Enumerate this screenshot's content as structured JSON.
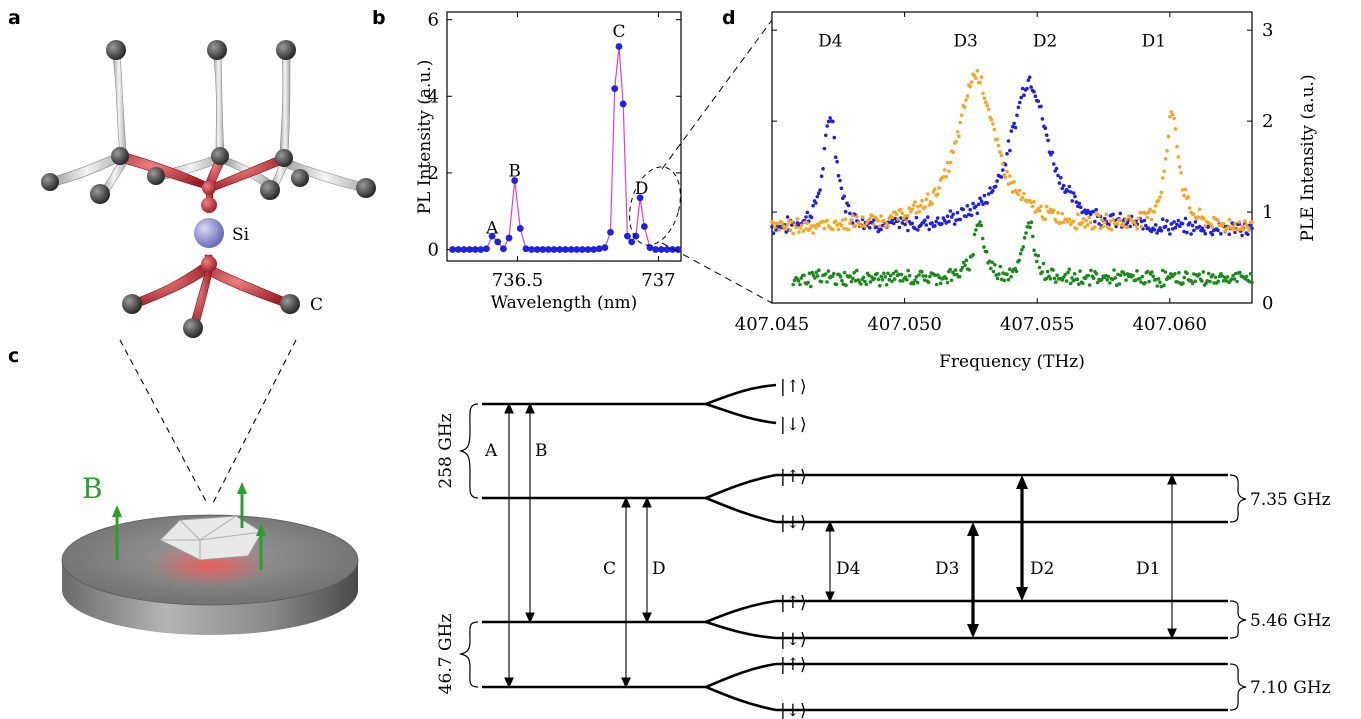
{
  "panels": {
    "a": "a",
    "b": "b",
    "c": "c",
    "d": "d"
  },
  "structure": {
    "si_label": "Si",
    "c_label": "C"
  },
  "device": {
    "field_label": "B"
  },
  "colors": {
    "pl_points": "#1f1fe6",
    "pl_line": "#e040c0",
    "d_blue": "#1f1fe6",
    "d_orange": "#f5a623",
    "d_green": "#1a8a1a",
    "b_field": "#2aa02a",
    "c_atom": "#3a3a3a",
    "si_atom": "#8f8fcf",
    "bond_red": "#c0303a"
  },
  "chart_data": [
    {
      "type": "line",
      "xlabel": "Wavelength (nm)",
      "ylabel": "PL Intensity (a.u.)",
      "xlim": [
        736.25,
        737.08
      ],
      "ylim": [
        -0.3,
        6.2
      ],
      "xticks": [
        736.5,
        737
      ],
      "xtick_labels": [
        "736.5",
        "737"
      ],
      "yticks": [
        0,
        2,
        4,
        6
      ],
      "ytick_labels": [
        "0",
        "2",
        "4",
        "6"
      ],
      "peak_labels": [
        {
          "label": "A",
          "x": 736.41,
          "y": 0.42
        },
        {
          "label": "B",
          "x": 736.49,
          "y": 1.9
        },
        {
          "label": "C",
          "x": 736.86,
          "y": 5.55
        },
        {
          "label": "D",
          "x": 736.94,
          "y": 1.45
        }
      ],
      "x": [
        736.27,
        736.29,
        736.31,
        736.33,
        736.35,
        736.37,
        736.39,
        736.41,
        736.43,
        736.45,
        736.47,
        736.49,
        736.51,
        736.53,
        736.55,
        736.57,
        736.59,
        736.61,
        736.63,
        736.65,
        736.67,
        736.69,
        736.71,
        736.73,
        736.75,
        736.77,
        736.79,
        736.81,
        736.83,
        736.845,
        736.86,
        736.875,
        736.89,
        736.905,
        736.92,
        736.935,
        736.95,
        736.97,
        736.99,
        737.01,
        737.03,
        737.05,
        737.07
      ],
      "values": [
        0.0,
        0.0,
        0.0,
        0.0,
        0.0,
        0.0,
        0.02,
        0.35,
        0.2,
        0.02,
        0.3,
        1.8,
        0.55,
        0.02,
        0.0,
        0.0,
        0.0,
        0.0,
        0.0,
        0.0,
        0.0,
        0.0,
        0.0,
        0.0,
        0.0,
        0.0,
        0.02,
        0.05,
        0.45,
        4.2,
        5.3,
        3.8,
        0.35,
        0.2,
        0.35,
        1.35,
        0.6,
        0.05,
        0.0,
        0.0,
        0.0,
        0.0,
        0.0
      ]
    },
    {
      "type": "scatter",
      "xlabel": "Frequency (THz)",
      "ylabel": "PLE Intensity (a.u.)",
      "xlim": [
        407.045,
        407.0631
      ],
      "ylim": [
        0,
        3.2
      ],
      "xticks": [
        407.045,
        407.05,
        407.055,
        407.06
      ],
      "xtick_labels": [
        "407.045",
        "407.050",
        "407.055",
        "407.060"
      ],
      "yticks": [
        0,
        1,
        2,
        3
      ],
      "ytick_labels": [
        "0",
        "1",
        "2",
        "3"
      ],
      "peak_labels": [
        {
          "label": "D4",
          "x": 407.0472,
          "y": 2.82
        },
        {
          "label": "D3",
          "x": 407.0523,
          "y": 2.82
        },
        {
          "label": "D2",
          "x": 407.0553,
          "y": 2.82
        },
        {
          "label": "D1",
          "x": 407.0594,
          "y": 2.82
        }
      ],
      "series": [
        {
          "color": "#1f1fe6",
          "baseline": 0.8,
          "peaks": [
            {
              "x0": 407.0472,
              "amp": 1.25,
              "w": 0.0003
            },
            {
              "x0": 407.0547,
              "amp": 1.65,
              "w": 0.00085
            }
          ],
          "x_start": 407.045,
          "x_end": 407.0631
        },
        {
          "color": "#f5a623",
          "baseline": 0.82,
          "peaks": [
            {
              "x0": 407.0527,
              "amp": 1.7,
              "w": 0.00085
            },
            {
              "x0": 407.0601,
              "amp": 1.25,
              "w": 0.0003
            }
          ],
          "x_start": 407.045,
          "x_end": 407.0631
        },
        {
          "color": "#1a8a1a",
          "baseline": 0.27,
          "peaks": [
            {
              "x0": 407.0528,
              "amp": 0.65,
              "w": 0.00022
            },
            {
              "x0": 407.0547,
              "amp": 0.63,
              "w": 0.00022
            }
          ],
          "x_start": 407.0458,
          "x_end": 407.0631
        }
      ]
    }
  ],
  "levels": {
    "splitting_258": "258 GHz",
    "splitting_46": "46.7 GHz",
    "splitting_735": "7.35 GHz",
    "splitting_546": "5.46 GHz",
    "splitting_710": "7.10 GHz",
    "spin_up": "|↑⟩",
    "spin_down": "|↓⟩",
    "transitions": {
      "A": "A",
      "B": "B",
      "C": "C",
      "D": "D",
      "D1": "D1",
      "D2": "D2",
      "D3": "D3",
      "D4": "D4"
    }
  }
}
